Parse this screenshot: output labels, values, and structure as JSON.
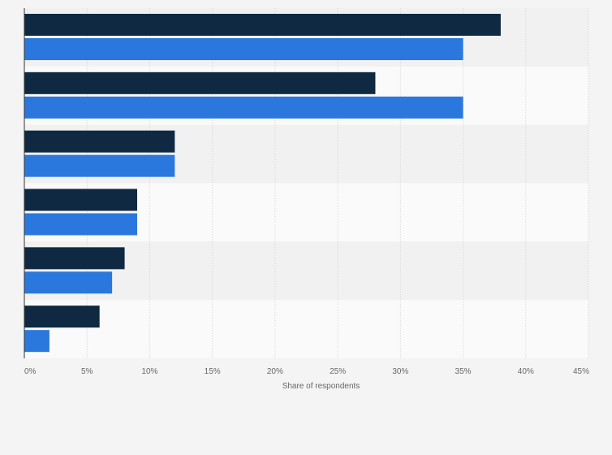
{
  "chart_data": {
    "type": "bar",
    "orientation": "horizontal",
    "title": "",
    "xlabel": "Share of respondents",
    "ylabel": "",
    "xlim": [
      0,
      45
    ],
    "x_ticks": [
      0,
      5,
      10,
      15,
      20,
      25,
      30,
      35,
      40,
      45
    ],
    "x_tick_labels": [
      "0%",
      "5%",
      "10%",
      "15%",
      "20%",
      "25%",
      "30%",
      "35%",
      "40%",
      "45%"
    ],
    "unit": "%",
    "grid": true,
    "categories": [
      "",
      "",
      "",
      "",
      "",
      ""
    ],
    "series": [
      {
        "color": "#0f2942",
        "values": [
          38,
          28,
          12,
          9,
          8,
          6
        ]
      },
      {
        "color": "#2a78de",
        "values": [
          35,
          35,
          12,
          9,
          7,
          2
        ]
      }
    ]
  }
}
